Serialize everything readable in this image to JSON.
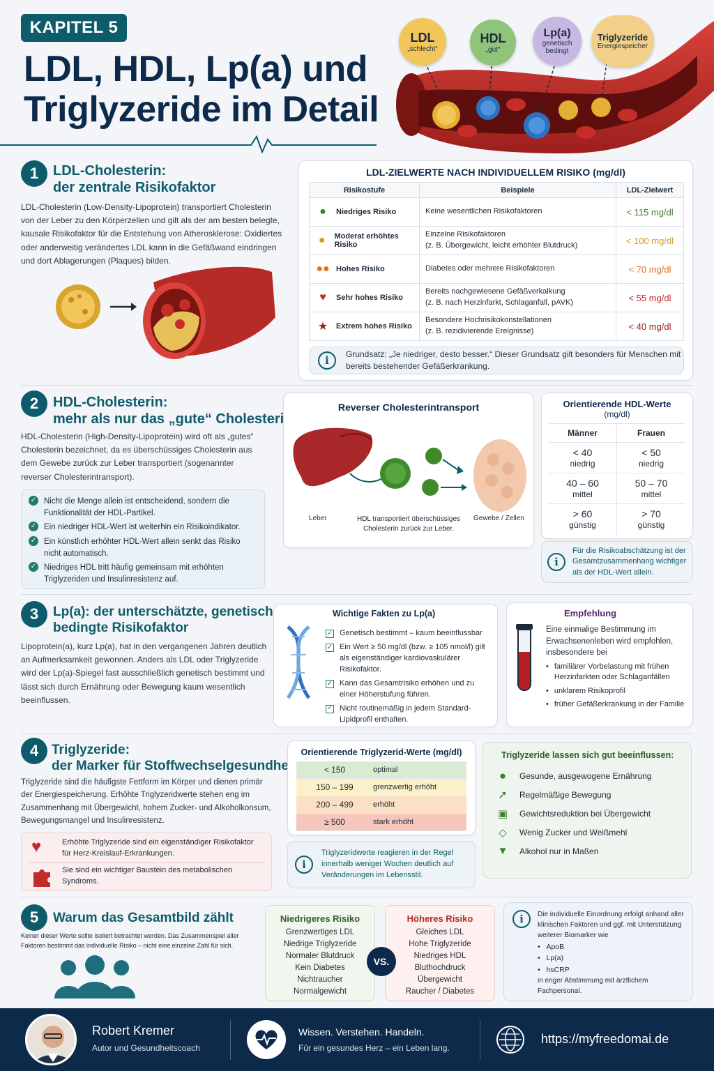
{
  "header": {
    "chapter": "KAPITEL 5",
    "title_line1": "LDL, HDL, Lp(a) und",
    "title_line2": "Triglyzeride im Detail",
    "bubbles": [
      {
        "name": "LDL",
        "sub": "„schlecht“",
        "color": "#f2c65a"
      },
      {
        "name": "HDL",
        "sub": "„gut“",
        "color": "#8fc47a"
      },
      {
        "name": "Lp(a)",
        "sub": "genetisch bedingt",
        "color": "#c7b7e3"
      },
      {
        "name": "Triglyzeride",
        "sub": "Energiespeicher",
        "color": "#f3d08a"
      }
    ]
  },
  "s1": {
    "num": "1",
    "title_line1": "LDL-Cholesterin:",
    "title_line2": "der zentrale Risikofaktor",
    "text": "LDL-Cholesterin (Low-Density-Lipoprotein) transportiert Cholesterin von der Leber zu den Körperzellen und gilt als der am besten belegte, kausale Risikofaktor für die Entstehung von Atherosklerose: Oxidiertes oder anderweitig verändertes LDL kann in die Gefäßwand eindringen und dort Ablagerungen (Plaques) bilden.",
    "table_title": "LDL-ZIELWERTE NACH INDIVIDUELLEM RISIKO (mg/dl)",
    "col_headers": [
      "Risikostufe",
      "Beispiele",
      "LDL-Zielwert"
    ],
    "rows": [
      {
        "level": "Niedriges Risiko",
        "example1": "Keine wesentlichen Risikofaktoren",
        "example2": "",
        "target": "< 115 mg/dl",
        "color": "#3f7f2e",
        "icon": "person-icon"
      },
      {
        "level": "Moderat erhöhtes Risiko",
        "example1": "Einzelne Risikofaktoren",
        "example2": "(z. B. Übergewicht, leicht erhöhter Blutdruck)",
        "target": "< 100 mg/dl",
        "color": "#d69a1a",
        "icon": "person-warning-icon"
      },
      {
        "level": "Hohes Risiko",
        "example1": "Diabetes oder mehrere Risikofaktoren",
        "example2": "",
        "target": "< 70 mg/dl",
        "color": "#e07020",
        "icon": "people-icon"
      },
      {
        "level": "Sehr hohes Risiko",
        "example1": "Bereits nachgewiesene Gefäßverkalkung",
        "example2": "(z. B. nach Herzinfarkt, Schlaganfall, pAVK)",
        "target": "< 55 mg/dl",
        "color": "#c42a2a",
        "icon": "heart-pulse-icon"
      },
      {
        "level": "Extrem hohes Risiko",
        "example1": "Besondere Hochrisikokonstellationen",
        "example2": "(z. B. rezidivierende Ereignisse)",
        "target": "< 40 mg/dl",
        "color": "#9e1b1b",
        "icon": "star-icon"
      }
    ],
    "principle": "Grundsatz: „Je niedriger, desto besser.“ Dieser Grundsatz gilt besonders für Menschen mit bereits bestehender Gefäßerkrankung."
  },
  "s2": {
    "num": "2",
    "title_line1": "HDL-Cholesterin:",
    "title_line2": "mehr als nur das „gute“ Cholesterin",
    "text": "HDL-Cholesterin (High-Density-Lipoprotein) wird oft als „gutes“ Cholesterin bezeichnet, da es überschüssiges Cholesterin aus dem Gewebe zurück zur Leber transportiert (sogenannter reverser Cholesterintransport).",
    "bullets": [
      "Nicht die Menge allein ist entscheidend, sondern die Funktionalität der HDL-Partikel.",
      "Ein niedriger HDL-Wert ist weiterhin ein Risikoindikator.",
      "Ein künstlich erhöhter HDL-Wert allein senkt das Risiko nicht automatisch.",
      "Niedriges HDL tritt häufig gemeinsam mit erhöhten Triglyzeriden und Insulinresistenz auf."
    ],
    "transport_title": "Reverser Cholesterintransport",
    "label_liver": "Leber",
    "label_hdl": "HDL transportiert überschüssiges Cholesterin zurück zur Leber.",
    "label_cells": "Gewebe / Zellen",
    "values_title": "Orientierende HDL-Werte",
    "values_unit": "(mg/dl)",
    "men": "Männer",
    "women": "Frauen",
    "values": [
      {
        "m": "< 40",
        "f": "< 50",
        "label": "niedrig"
      },
      {
        "m": "40 – 60",
        "f": "50 – 70",
        "label": "mittel"
      },
      {
        "m": "> 60",
        "f": "> 70",
        "label": "günstig"
      }
    ],
    "note": "Für die Risikoabschätzung ist der Gesamtzusammenhang wichtiger als der HDL-Wert allein."
  },
  "s3": {
    "num": "3",
    "title_line1": "Lp(a): der unterschätzte, genetisch",
    "title_line2": "bedingte Risikofaktor",
    "text": "Lipoprotein(a), kurz Lp(a), hat in den vergangenen Jahren deutlich an Aufmerksamkeit gewonnen. Anders als LDL oder Triglyzeride wird der Lp(a)-Spiegel fast ausschließlich genetisch bestimmt und lässt sich durch Ernährung oder Bewegung kaum wesentlich beeinflussen.",
    "facts_title": "Wichtige Fakten zu Lp(a)",
    "facts": [
      "Genetisch bestimmt – kaum beeinflussbar",
      "Ein Wert ≥ 50 mg/dl (bzw. ≥ 105 nmol/l) gilt als eigenständiger kardiovaskulärer Risikofaktor.",
      "Kann das Gesamtrisiko erhöhen und zu einer Höherstufung führen.",
      "Nicht routinemäßig in jedem Standard-Lipidprofil enthalten."
    ],
    "rec_title": "Empfehlung",
    "rec_text": "Eine einmalige Bestimmung im Erwachsenenleben wird empfohlen, insbesondere bei",
    "rec_items": [
      "familiärer Vorbelastung mit frühen Herzinfarkten oder Schlaganfällen",
      "unklarem Risikoprofil",
      "früher Gefäßerkrankung in der Familie"
    ]
  },
  "s4": {
    "num": "4",
    "title_line1": "Triglyzeride:",
    "title_line2": "der Marker für Stoffwechselgesundheit",
    "text": "Triglyzeride sind die häufigste Fettform im Körper und dienen primär der Energiespeicherung. Erhöhte Triglyzeridwerte stehen eng im Zusammenhang mit Übergewicht, hohem Zucker- und Alkoholkonsum, Bewegungsmangel und Insulinresistenz.",
    "box_items": [
      {
        "text": "Erhöhte Triglyzeride sind ein eigenständiger Risikofaktor für Herz-Kreislauf-Erkrankungen.",
        "icon": "heart-icon"
      },
      {
        "text": "Sie sind ein wichtiger Baustein des metabolischen Syndroms.",
        "icon": "puzzle-icon"
      }
    ],
    "values_title": "Orientierende Triglyzerid-Werte (mg/dl)",
    "values": [
      {
        "range": "< 150",
        "label": "optimal",
        "color": "#dbead2"
      },
      {
        "range": "150 – 199",
        "label": "grenzwertig erhöht",
        "color": "#fbf1c9"
      },
      {
        "range": "200 – 499",
        "label": "erhöht",
        "color": "#fbe0c4"
      },
      {
        "range": "≥ 500",
        "label": "stark erhöht",
        "color": "#f6c6bd"
      }
    ],
    "note": "Triglyzeridwerte reagieren in der Regel innerhalb weniger Wochen deutlich auf Veränderungen im Lebensstil.",
    "tips_title": "Triglyzeride lassen sich gut beeinflussen:",
    "tips": [
      {
        "text": "Gesunde, ausgewogene Ernährung",
        "icon": "apple-icon"
      },
      {
        "text": "Regelmäßige Bewegung",
        "icon": "running-icon"
      },
      {
        "text": "Gewichtsreduktion bei Übergewicht",
        "icon": "scale-icon"
      },
      {
        "text": "Wenig Zucker und Weißmehl",
        "icon": "sugar-cube-icon"
      },
      {
        "text": "Alkohol nur in Maßen",
        "icon": "wine-glass-icon"
      }
    ]
  },
  "s5": {
    "num": "5",
    "title": "Warum das Gesamtbild zählt",
    "text": "Keiner dieser Werte sollte isoliert betrachtet werden. Das Zusammenspiel aller Faktoren bestimmt das individuelle Risiko – nicht eine einzelne Zahl für sich.",
    "lower_title": "Niedrigeres Risiko",
    "lower_items": [
      "Grenzwertiges LDL",
      "Niedrige Triglyzeride",
      "Normaler Blutdruck",
      "Kein Diabetes",
      "Nichtraucher",
      "Normalgewicht"
    ],
    "vs": "VS.",
    "higher_title": "Höheres Risiko",
    "higher_items": [
      "Gleiches LDL",
      "Hohe Triglyzeride",
      "Niedriges HDL",
      "Bluthochdruck",
      "Übergewicht",
      "Raucher / Diabetes"
    ],
    "info_text": "Die individuelle Einordnung erfolgt anhand aller klinischen Faktoren und ggf. mit Unterstützung weiterer Biomarker wie",
    "info_items": [
      "ApoB",
      "Lp(a)",
      "hsCRP"
    ],
    "info_after": "in enger Abstimmung mit ärztlichem Fachpersonal."
  },
  "footer": {
    "name": "Robert Kremer",
    "role": "Autor und Gesundheitscoach",
    "slogan": "Wissen. Verstehen. Handeln.",
    "slogan_sub": "Für ein gesundes Herz – ein Leben lang.",
    "url": "https://myfreedomai.de"
  }
}
